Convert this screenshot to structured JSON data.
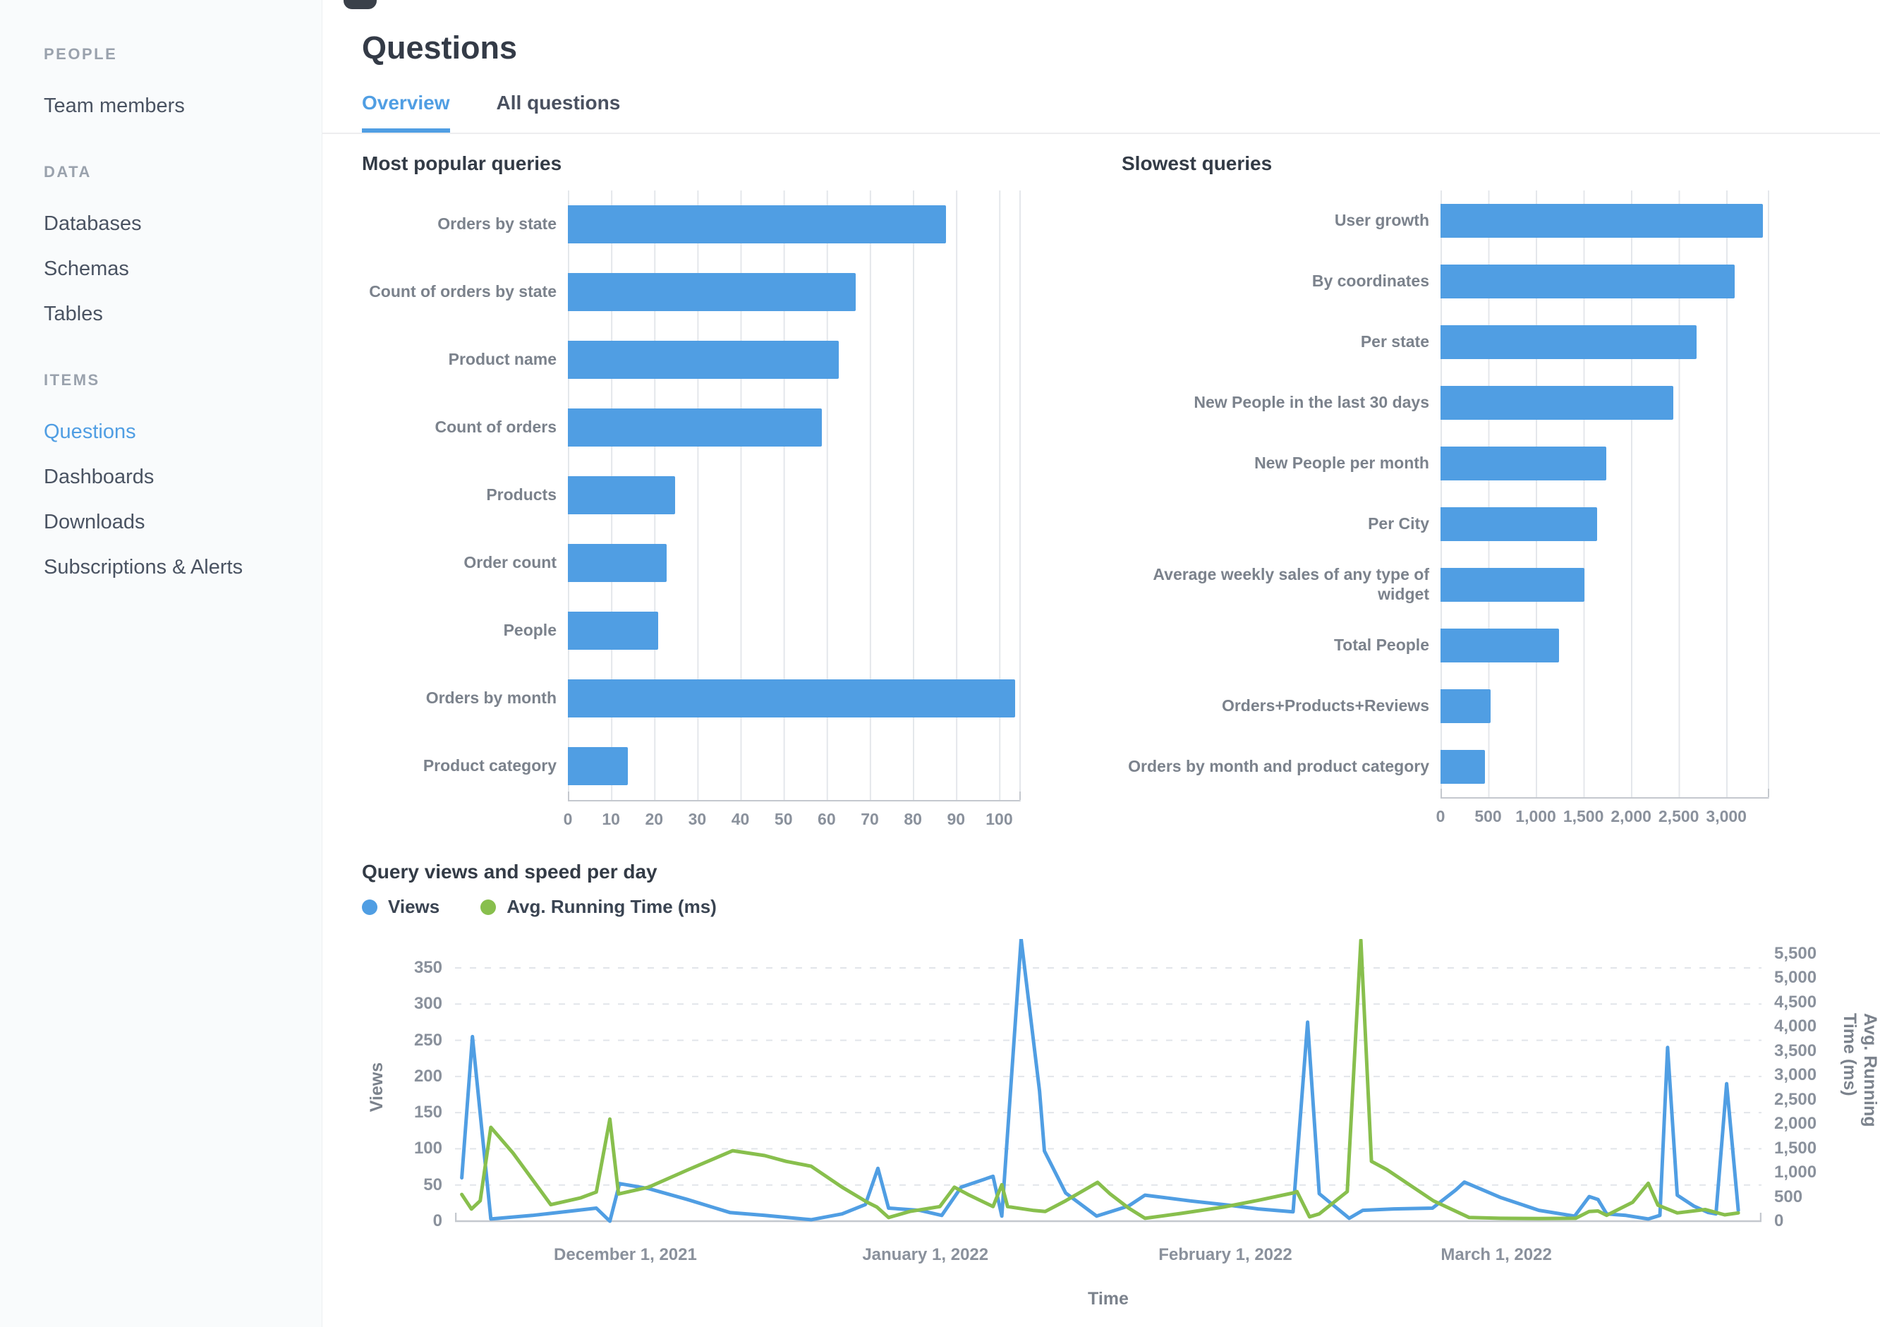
{
  "colors": {
    "accent_blue": "#509EE3",
    "chart_green": "#88BF4D",
    "sidebar_bg": "#F9FBFC",
    "grid_line": "#E4E7EB",
    "axis_text": "#8A919C"
  },
  "sidebar": {
    "sections": [
      {
        "title": "PEOPLE",
        "items": [
          {
            "label": "Team members",
            "active": false
          }
        ]
      },
      {
        "title": "DATA",
        "items": [
          {
            "label": "Databases",
            "active": false
          },
          {
            "label": "Schemas",
            "active": false
          },
          {
            "label": "Tables",
            "active": false
          }
        ]
      },
      {
        "title": "ITEMS",
        "items": [
          {
            "label": "Questions",
            "active": true
          },
          {
            "label": "Dashboards",
            "active": false
          },
          {
            "label": "Downloads",
            "active": false
          },
          {
            "label": "Subscriptions & Alerts",
            "active": false
          }
        ]
      }
    ]
  },
  "header": {
    "title": "Questions",
    "tabs": [
      {
        "label": "Overview",
        "active": true
      },
      {
        "label": "All questions",
        "active": false
      }
    ]
  },
  "chart_data": [
    {
      "type": "bar",
      "orientation": "horizontal",
      "title": "Most popular queries",
      "categories": [
        "Orders by state",
        "Count of orders by state",
        "Product name",
        "Count of orders",
        "Products",
        "Order count",
        "People",
        "Orders by month",
        "Product category"
      ],
      "values": [
        88,
        67,
        63,
        59,
        25,
        23,
        21,
        104,
        14
      ],
      "bar_color": "#509EE3",
      "xmax": 105,
      "xticks": {
        "values": [
          0,
          10,
          20,
          30,
          40,
          50,
          60,
          70,
          80,
          90,
          100
        ],
        "labels": [
          "0",
          "10",
          "20",
          "30",
          "40",
          "50",
          "60",
          "70",
          "80",
          "90",
          "100"
        ]
      }
    },
    {
      "type": "bar",
      "orientation": "horizontal",
      "title": "Slowest queries",
      "categories": [
        "User growth",
        "By coordinates",
        "Per state",
        "New People in the last 30 days",
        "New People per month",
        "Per City",
        "Average weekly sales of any type of widget",
        "Total People",
        "Orders+Products+Reviews",
        "Orders by month and product category"
      ],
      "values": [
        3400,
        3100,
        2700,
        2450,
        1750,
        1650,
        1520,
        1250,
        530,
        470
      ],
      "bar_color": "#509EE3",
      "xmax": 3450,
      "xticks": {
        "values": [
          0,
          500,
          1000,
          1500,
          2000,
          2500,
          3000
        ],
        "labels": [
          "0",
          "500",
          "1,000",
          "1,500",
          "2,000",
          "2,500",
          "3,000"
        ]
      }
    },
    {
      "type": "line",
      "title": "Query views and speed per day",
      "xlabel": "Time",
      "x_axis": {
        "total_days": 135,
        "ticks": [
          {
            "pos": 17.6,
            "label": "December 1, 2021"
          },
          {
            "pos": 48.6,
            "label": "January 1, 2022"
          },
          {
            "pos": 79.6,
            "label": "February 1, 2022"
          },
          {
            "pos": 107.6,
            "label": "March 1, 2022"
          }
        ]
      },
      "y_left": {
        "label": "Views",
        "ticks": [
          0,
          50,
          100,
          150,
          200,
          250,
          300,
          350
        ],
        "tick_labels": [
          "0",
          "50",
          "100",
          "150",
          "200",
          "250",
          "300",
          "350"
        ],
        "max_value": 390
      },
      "y_right": {
        "label": "Avg. Running Time (ms)",
        "ticks": [
          0,
          500,
          1000,
          1500,
          2000,
          2500,
          3000,
          3500,
          4000,
          4500,
          5000,
          5500
        ],
        "tick_labels": [
          "0",
          "500",
          "1,000",
          "1,500",
          "2,000",
          "2,500",
          "3,000",
          "3,500",
          "4,000",
          "4,500",
          "5,000",
          "5,500"
        ],
        "max_value": 5800
      },
      "series": [
        {
          "name": "Views",
          "axis": "left",
          "color": "#509EE3",
          "points": [
            [
              0.7,
              60
            ],
            [
              1.8,
              255
            ],
            [
              3.7,
              3
            ],
            [
              8,
              8
            ],
            [
              12,
              14
            ],
            [
              14.6,
              18
            ],
            [
              16,
              0
            ],
            [
              17,
              52
            ],
            [
              20,
              45
            ],
            [
              24,
              30
            ],
            [
              28.4,
              12
            ],
            [
              32,
              8
            ],
            [
              36.8,
              2
            ],
            [
              40,
              10
            ],
            [
              42.4,
              23
            ],
            [
              43.7,
              73
            ],
            [
              44.8,
              18
            ],
            [
              48,
              15
            ],
            [
              50.3,
              8
            ],
            [
              52.3,
              47
            ],
            [
              55.6,
              62
            ],
            [
              56.5,
              7
            ],
            [
              58.5,
              390
            ],
            [
              60.4,
              180
            ],
            [
              60.9,
              97
            ],
            [
              63.1,
              39
            ],
            [
              66.3,
              7
            ],
            [
              67.7,
              13
            ],
            [
              69.6,
              21
            ],
            [
              71.3,
              36
            ],
            [
              76,
              28
            ],
            [
              80,
              22
            ],
            [
              83,
              17
            ],
            [
              86.6,
              13
            ],
            [
              88.1,
              275
            ],
            [
              89.3,
              38
            ],
            [
              92.4,
              4
            ],
            [
              93.8,
              15
            ],
            [
              97,
              17
            ],
            [
              101,
              18
            ],
            [
              103.4,
              43
            ],
            [
              104.3,
              54
            ],
            [
              108,
              33
            ],
            [
              112,
              15
            ],
            [
              115.7,
              7
            ],
            [
              117.2,
              34
            ],
            [
              118.1,
              30
            ],
            [
              119,
              10
            ],
            [
              121,
              8
            ],
            [
              123.3,
              3
            ],
            [
              124.5,
              8
            ],
            [
              125.3,
              240
            ],
            [
              126.3,
              36
            ],
            [
              128,
              21
            ],
            [
              129.5,
              12
            ],
            [
              130.3,
              10
            ],
            [
              131.4,
              190
            ],
            [
              132.6,
              15
            ]
          ]
        },
        {
          "name": "Avg. Running Time (ms)",
          "axis": "right",
          "color": "#88BF4D",
          "points": [
            [
              0.7,
              550
            ],
            [
              1.7,
              250
            ],
            [
              2.6,
              420
            ],
            [
              3.7,
              1930
            ],
            [
              6,
              1400
            ],
            [
              9.9,
              340
            ],
            [
              13,
              480
            ],
            [
              14.6,
              600
            ],
            [
              16,
              2100
            ],
            [
              16.9,
              560
            ],
            [
              20,
              700
            ],
            [
              24,
              1050
            ],
            [
              28.7,
              1450
            ],
            [
              32,
              1350
            ],
            [
              34.2,
              1230
            ],
            [
              36.8,
              1130
            ],
            [
              40,
              700
            ],
            [
              42.6,
              390
            ],
            [
              43.6,
              290
            ],
            [
              44.8,
              75
            ],
            [
              47,
              200
            ],
            [
              50.1,
              300
            ],
            [
              51.6,
              700
            ],
            [
              53,
              550
            ],
            [
              55.6,
              300
            ],
            [
              56.5,
              750
            ],
            [
              57.1,
              300
            ],
            [
              59.8,
              220
            ],
            [
              61,
              200
            ],
            [
              63.1,
              420
            ],
            [
              66.4,
              800
            ],
            [
              67.7,
              560
            ],
            [
              69.6,
              270
            ],
            [
              71.3,
              60
            ],
            [
              75,
              160
            ],
            [
              79.4,
              290
            ],
            [
              83,
              430
            ],
            [
              86.6,
              580
            ],
            [
              87,
              610
            ],
            [
              88.3,
              90
            ],
            [
              89.3,
              150
            ],
            [
              92.2,
              610
            ],
            [
              93.6,
              5780
            ],
            [
              94.7,
              1230
            ],
            [
              96.3,
              1060
            ],
            [
              101.1,
              420
            ],
            [
              104.8,
              75
            ],
            [
              108,
              60
            ],
            [
              112,
              55
            ],
            [
              115.8,
              60
            ],
            [
              117.2,
              200
            ],
            [
              118.1,
              210
            ],
            [
              119,
              120
            ],
            [
              121.7,
              390
            ],
            [
              123.3,
              780
            ],
            [
              124.3,
              330
            ],
            [
              126.3,
              170
            ],
            [
              129.2,
              240
            ],
            [
              131.2,
              130
            ],
            [
              132.6,
              170
            ]
          ]
        }
      ]
    }
  ]
}
